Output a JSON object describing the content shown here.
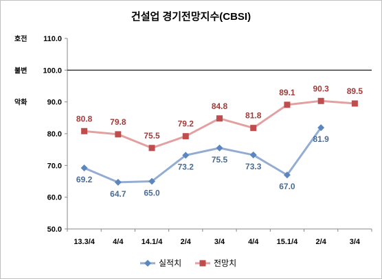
{
  "chart_data": {
    "type": "line",
    "title": "건설업 경기전망지수(CBSI)",
    "categories": [
      "13.3/4",
      "4/4",
      "14.1/4",
      "2/4",
      "3/4",
      "4/4",
      "15.1/4",
      "2/4",
      "3/4"
    ],
    "ylim": [
      50,
      110
    ],
    "yticks": [
      "50.0",
      "60.0",
      "70.0",
      "80.0",
      "90.0",
      "100.0",
      "110.0"
    ],
    "side_labels": {
      "good": "호전",
      "neutral": "불변",
      "bad": "악화"
    },
    "series": [
      {
        "name": "실적치",
        "color": "#5b86be",
        "marker": "diamond",
        "values": [
          69.2,
          64.7,
          65.0,
          73.2,
          75.5,
          73.3,
          67.0,
          81.9,
          null
        ],
        "labels": [
          "69.2",
          "64.7",
          "65.0",
          "73.2",
          "75.5",
          "73.3",
          "67.0",
          "81.9",
          ""
        ]
      },
      {
        "name": "전망치",
        "color": "#bf4d4d",
        "marker": "square",
        "values": [
          80.8,
          79.8,
          75.5,
          79.2,
          84.8,
          81.8,
          89.1,
          90.3,
          89.5
        ],
        "labels": [
          "80.8",
          "79.8",
          "75.5",
          "79.2",
          "84.8",
          "81.8",
          "89.1",
          "90.3",
          "89.5"
        ]
      }
    ],
    "grid": false,
    "reference_line": 100,
    "legend_position": "bottom"
  }
}
